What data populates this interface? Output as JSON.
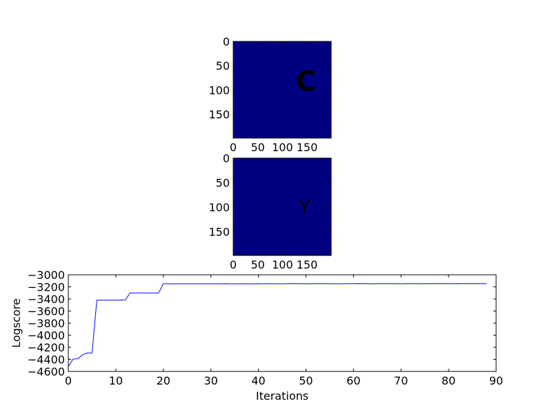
{
  "chart_data": [
    {
      "type": "heatmap",
      "xlim": [
        0,
        199
      ],
      "ylim": [
        199,
        0
      ],
      "xticks": [
        "0",
        "50",
        "100",
        "150"
      ],
      "yticks": [
        "0",
        "50",
        "100",
        "150"
      ],
      "background_color": "#000080",
      "glyph_color": "#8b0000",
      "glyph": "C",
      "glyph_center": [
        148,
        81
      ]
    },
    {
      "type": "heatmap",
      "xlim": [
        0,
        199
      ],
      "ylim": [
        199,
        0
      ],
      "xticks": [
        "0",
        "50",
        "100",
        "150"
      ],
      "yticks": [
        "0",
        "50",
        "100",
        "150"
      ],
      "background_color": "#000080",
      "glyph_color": "#8b0000",
      "glyph": "Y",
      "glyph_center": [
        145,
        100
      ]
    },
    {
      "type": "line",
      "xlabel": "Iterations",
      "ylabel": "Logscore",
      "xlim": [
        0,
        90
      ],
      "ylim": [
        -4600,
        -3000
      ],
      "xticks": [
        "0",
        "10",
        "20",
        "30",
        "40",
        "50",
        "60",
        "70",
        "80",
        "90"
      ],
      "yticks": [
        "−3000",
        "−3200",
        "−3400",
        "−3600",
        "−3800",
        "−4000",
        "−4200",
        "−4400",
        "−4600"
      ],
      "line_color": "#0000ff",
      "grid": false,
      "series": [
        {
          "x": [
            0,
            1,
            2,
            3,
            4,
            5,
            6,
            7,
            8,
            9,
            10,
            11,
            12,
            13,
            14,
            15,
            16,
            17,
            18,
            19,
            20,
            21,
            22,
            23,
            24,
            25,
            26,
            27,
            28,
            29,
            30,
            31,
            32,
            33,
            34,
            35,
            36,
            37,
            38,
            39,
            40,
            41,
            42,
            43,
            44,
            45,
            46,
            47,
            48,
            49,
            50,
            51,
            52,
            53,
            54,
            55,
            56,
            57,
            58,
            59,
            60,
            61,
            62,
            63,
            64,
            65,
            66,
            67,
            68,
            69,
            70,
            71,
            72,
            73,
            74,
            75,
            76,
            77,
            78,
            79,
            80,
            81,
            82,
            83,
            84,
            85,
            86,
            87,
            88
          ],
          "y": [
            -4520,
            -4395,
            -4390,
            -4325,
            -4295,
            -4295,
            -3420,
            -3420,
            -3420,
            -3420,
            -3420,
            -3418,
            -3416,
            -3300,
            -3300,
            -3300,
            -3302,
            -3302,
            -3302,
            -3302,
            -3148,
            -3148,
            -3148,
            -3148,
            -3149,
            -3149,
            -3149,
            -3149,
            -3149,
            -3149,
            -3148,
            -3148,
            -3148,
            -3147,
            -3148,
            -3148,
            -3149,
            -3147,
            -3148,
            -3148,
            -3147,
            -3148,
            -3147,
            -3147,
            -3148,
            -3148,
            -3147,
            -3147,
            -3147,
            -3147,
            -3148,
            -3147,
            -3147,
            -3147,
            -3147,
            -3147,
            -3148,
            -3148,
            -3147,
            -3147,
            -3147,
            -3146,
            -3147,
            -3147,
            -3148,
            -3147,
            -3147,
            -3147,
            -3147,
            -3147,
            -3148,
            -3147,
            -3147,
            -3147,
            -3147,
            -3148,
            -3146,
            -3147,
            -3147,
            -3147,
            -3147,
            -3147,
            -3146,
            -3147,
            -3147,
            -3147,
            -3147,
            -3147,
            -3146
          ]
        }
      ]
    }
  ]
}
